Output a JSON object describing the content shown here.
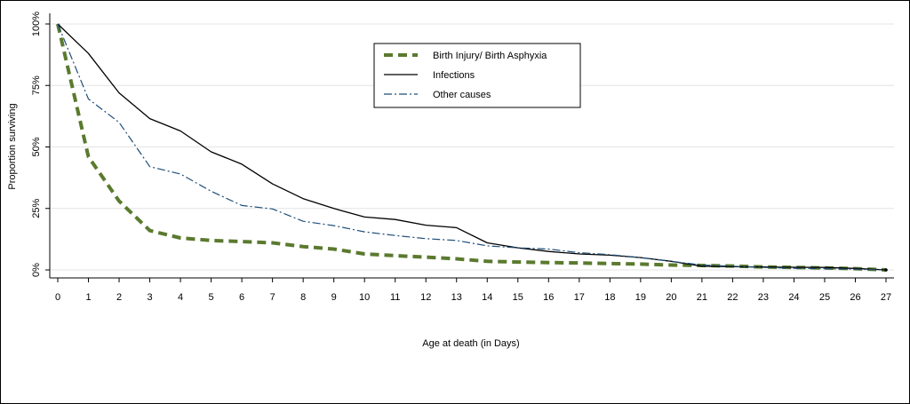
{
  "chart_data": {
    "type": "line",
    "title": "",
    "xlabel": "Age at death (in Days)",
    "ylabel": "Proportion surviving",
    "x": [
      0,
      1,
      2,
      3,
      4,
      5,
      6,
      7,
      8,
      9,
      10,
      11,
      12,
      13,
      14,
      15,
      16,
      17,
      18,
      19,
      20,
      21,
      22,
      23,
      24,
      25,
      26,
      27
    ],
    "xticks": [
      "0",
      "1",
      "2",
      "3",
      "4",
      "5",
      "6",
      "7",
      "8",
      "9",
      "10",
      "11",
      "12",
      "13",
      "14",
      "15",
      "16",
      "17",
      "18",
      "19",
      "20",
      "21",
      "22",
      "23",
      "24",
      "25",
      "26",
      "27"
    ],
    "yticks": [
      {
        "value": 0,
        "label": "0%"
      },
      {
        "value": 0.25,
        "label": "25%"
      },
      {
        "value": 0.5,
        "label": "50%"
      },
      {
        "value": 0.75,
        "label": "75%"
      },
      {
        "value": 1.0,
        "label": "100%"
      }
    ],
    "xlim": [
      0,
      27
    ],
    "ylim": [
      0,
      1
    ],
    "grid": "horizontal",
    "legend_position": "top-center",
    "series": [
      {
        "name": "Birth Injury/ Birth Asphyxia",
        "color": "#5a7a2e",
        "style": "dashed-thick",
        "values": [
          1.0,
          0.46,
          0.28,
          0.16,
          0.13,
          0.12,
          0.115,
          0.11,
          0.095,
          0.085,
          0.065,
          0.058,
          0.052,
          0.045,
          0.035,
          0.032,
          0.03,
          0.028,
          0.026,
          0.024,
          0.02,
          0.018,
          0.016,
          0.012,
          0.01,
          0.008,
          0.005,
          0.0
        ]
      },
      {
        "name": "Infections",
        "color": "#000000",
        "style": "solid",
        "values": [
          1.0,
          0.88,
          0.72,
          0.615,
          0.565,
          0.48,
          0.43,
          0.35,
          0.29,
          0.25,
          0.215,
          0.205,
          0.182,
          0.172,
          0.11,
          0.09,
          0.075,
          0.065,
          0.06,
          0.05,
          0.035,
          0.015,
          0.013,
          0.012,
          0.011,
          0.01,
          0.006,
          0.0
        ]
      },
      {
        "name": "Other causes",
        "color": "#1f4e79",
        "style": "dash-dot",
        "values": [
          1.0,
          0.695,
          0.6,
          0.42,
          0.39,
          0.32,
          0.262,
          0.248,
          0.198,
          0.18,
          0.155,
          0.14,
          0.127,
          0.12,
          0.098,
          0.09,
          0.085,
          0.07,
          0.062,
          0.05,
          0.035,
          0.02,
          0.015,
          0.01,
          0.007,
          0.005,
          0.003,
          0.0
        ]
      }
    ]
  }
}
